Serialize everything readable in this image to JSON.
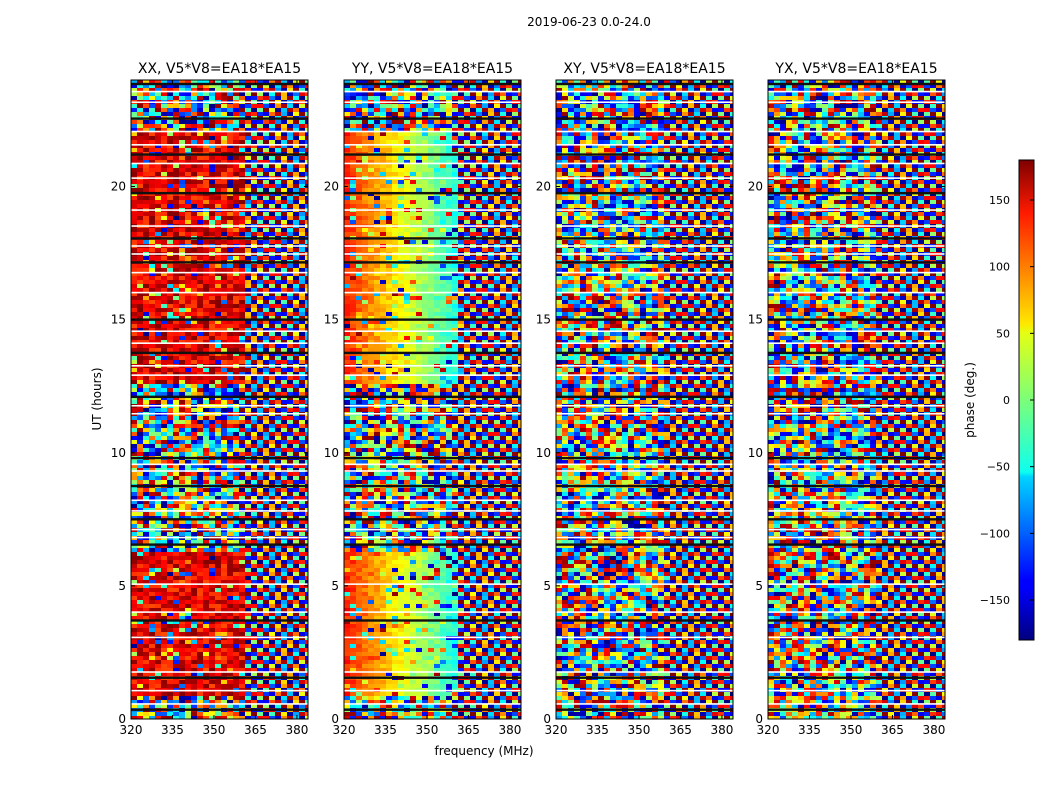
{
  "figure_title": "2019-06-23 0.0-24.0",
  "chart_data": {
    "type": "heatmap",
    "suptitle": "2019-06-23 0.0-24.0",
    "xlabel": "frequency (MHz)",
    "ylabel": "UT (hours)",
    "xlim": [
      320,
      384
    ],
    "ylim": [
      0,
      24
    ],
    "xticks": [
      320,
      335,
      350,
      365,
      380
    ],
    "yticks": [
      0,
      5,
      10,
      15,
      20
    ],
    "panels": [
      {
        "title": "XX, V5*V8=EA18*EA15",
        "pol": "XX"
      },
      {
        "title": "YY, V5*V8=EA18*EA15",
        "pol": "YY"
      },
      {
        "title": "XY, V5*V8=EA18*EA15",
        "pol": "XY"
      },
      {
        "title": "YX, V5*V8=EA18*EA15",
        "pol": "YX"
      }
    ],
    "colorbar": {
      "label": "phase (deg.)",
      "range": [
        -180,
        180
      ],
      "ticks": [
        150,
        100,
        50,
        0,
        -50,
        -100,
        -150
      ],
      "tick_labels": [
        "150",
        "100",
        "50",
        "0",
        "−50",
        "−100",
        "−150"
      ],
      "colormap": "jet"
    },
    "flagged_gaps_ut": [
      0.35,
      0.55,
      1.05,
      1.55,
      1.75,
      3.05,
      3.7,
      4.0,
      5.05,
      6.55,
      6.8,
      7.1,
      7.5,
      7.8,
      8.2,
      8.75,
      9.3,
      9.55,
      9.8,
      11.45,
      11.75,
      12.1,
      12.9,
      13.25,
      13.75,
      14.1,
      14.55,
      15.0,
      16.0,
      16.75,
      17.15,
      17.45,
      17.75,
      18.05,
      18.5,
      19.1,
      19.75,
      20.3,
      20.85,
      21.2,
      21.55,
      22.05,
      22.55,
      23.15,
      23.55,
      23.85
    ]
  }
}
